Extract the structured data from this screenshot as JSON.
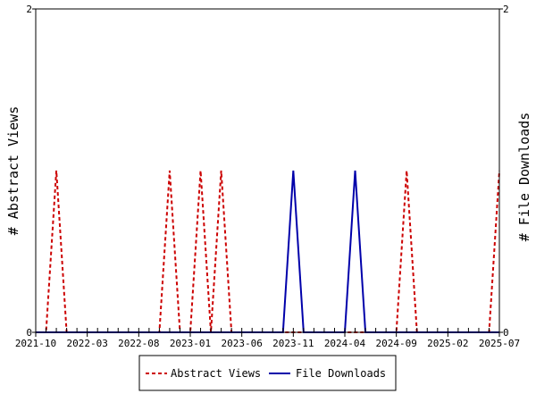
{
  "chart_data": {
    "type": "line",
    "title": "",
    "xlabel": "",
    "ylabel": "# Abstract Views",
    "y2label": "# File Downloads",
    "ylim": [
      0,
      2
    ],
    "y2lim": [
      0,
      2
    ],
    "xlim": [
      "2021-10",
      "2025-07"
    ],
    "x_tick_labels": [
      "2021-10",
      "2022-03",
      "2022-08",
      "2023-01",
      "2023-06",
      "2023-11",
      "2024-04",
      "2024-09",
      "2025-02",
      "2025-07"
    ],
    "y_tick_labels": [
      "0",
      "2"
    ],
    "y2_tick_labels": [
      "0",
      "2"
    ],
    "grid": false,
    "legend_position": "bottom",
    "series": [
      {
        "name": "Abstract Views",
        "axis": "left",
        "color": "#cc0000",
        "dash": "dashed",
        "points": [
          [
            "2021-10",
            0
          ],
          [
            "2021-11",
            0
          ],
          [
            "2021-12",
            1
          ],
          [
            "2022-01",
            0
          ],
          [
            "2022-02",
            0
          ],
          [
            "2022-03",
            0
          ],
          [
            "2022-04",
            0
          ],
          [
            "2022-05",
            0
          ],
          [
            "2022-06",
            0
          ],
          [
            "2022-07",
            0
          ],
          [
            "2022-08",
            0
          ],
          [
            "2022-09",
            0
          ],
          [
            "2022-10",
            0
          ],
          [
            "2022-11",
            1
          ],
          [
            "2022-12",
            0
          ],
          [
            "2023-01",
            0
          ],
          [
            "2023-02",
            1
          ],
          [
            "2023-03",
            0
          ],
          [
            "2023-04",
            1
          ],
          [
            "2023-05",
            0
          ],
          [
            "2023-06",
            0
          ],
          [
            "2023-07",
            0
          ],
          [
            "2023-08",
            0
          ],
          [
            "2023-09",
            0
          ],
          [
            "2023-10",
            0
          ],
          [
            "2023-11",
            0
          ],
          [
            "2023-12",
            0
          ],
          [
            "2024-01",
            0
          ],
          [
            "2024-02",
            0
          ],
          [
            "2024-03",
            0
          ],
          [
            "2024-04",
            0
          ],
          [
            "2024-05",
            0
          ],
          [
            "2024-06",
            0
          ],
          [
            "2024-07",
            0
          ],
          [
            "2024-08",
            0
          ],
          [
            "2024-09",
            0
          ],
          [
            "2024-10",
            1
          ],
          [
            "2024-11",
            0
          ],
          [
            "2024-12",
            0
          ],
          [
            "2025-01",
            0
          ],
          [
            "2025-02",
            0
          ],
          [
            "2025-03",
            0
          ],
          [
            "2025-04",
            0
          ],
          [
            "2025-05",
            0
          ],
          [
            "2025-06",
            0
          ],
          [
            "2025-07",
            1
          ]
        ]
      },
      {
        "name": "File Downloads",
        "axis": "right",
        "color": "#0000aa",
        "dash": "solid",
        "points": [
          [
            "2021-10",
            0
          ],
          [
            "2021-11",
            0
          ],
          [
            "2021-12",
            0
          ],
          [
            "2022-01",
            0
          ],
          [
            "2022-02",
            0
          ],
          [
            "2022-03",
            0
          ],
          [
            "2022-04",
            0
          ],
          [
            "2022-05",
            0
          ],
          [
            "2022-06",
            0
          ],
          [
            "2022-07",
            0
          ],
          [
            "2022-08",
            0
          ],
          [
            "2022-09",
            0
          ],
          [
            "2022-10",
            0
          ],
          [
            "2022-11",
            0
          ],
          [
            "2022-12",
            0
          ],
          [
            "2023-01",
            0
          ],
          [
            "2023-02",
            0
          ],
          [
            "2023-03",
            0
          ],
          [
            "2023-04",
            0
          ],
          [
            "2023-05",
            0
          ],
          [
            "2023-06",
            0
          ],
          [
            "2023-07",
            0
          ],
          [
            "2023-08",
            0
          ],
          [
            "2023-09",
            0
          ],
          [
            "2023-10",
            0
          ],
          [
            "2023-11",
            1
          ],
          [
            "2023-12",
            0
          ],
          [
            "2024-01",
            0
          ],
          [
            "2024-02",
            0
          ],
          [
            "2024-03",
            0
          ],
          [
            "2024-04",
            0
          ],
          [
            "2024-05",
            1
          ],
          [
            "2024-06",
            0
          ],
          [
            "2024-07",
            0
          ],
          [
            "2024-08",
            0
          ],
          [
            "2024-09",
            0
          ],
          [
            "2024-10",
            0
          ],
          [
            "2024-11",
            0
          ],
          [
            "2024-12",
            0
          ],
          [
            "2025-01",
            0
          ],
          [
            "2025-02",
            0
          ],
          [
            "2025-03",
            0
          ],
          [
            "2025-04",
            0
          ],
          [
            "2025-05",
            0
          ],
          [
            "2025-06",
            0
          ],
          [
            "2025-07",
            0
          ]
        ]
      }
    ]
  }
}
